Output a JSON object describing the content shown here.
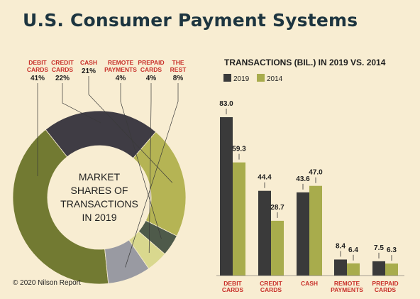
{
  "header": {
    "title": "U.S. Consumer Payment Systems"
  },
  "footer": {
    "copyright": "© 2020 Nilson Report"
  },
  "chart_data": [
    {
      "type": "pie",
      "title": "MARKET SHARES OF TRANSACTIONS IN 2019",
      "center_lines": [
        "MARKET",
        "SHARES OF",
        "TRANSACTIONS",
        "IN 2019"
      ],
      "slices": [
        {
          "label": [
            "DEBIT",
            "CARDS"
          ],
          "pct_label": "41%",
          "value": 41,
          "color": "#727a32"
        },
        {
          "label": [
            "CREDIT",
            "CARDS"
          ],
          "pct_label": "22%",
          "value": 22,
          "color": "#3f3c44"
        },
        {
          "label": [
            "CASH"
          ],
          "pct_label": "21%",
          "value": 21,
          "color": "#b5b454"
        },
        {
          "label": [
            "REMOTE",
            "PAYMENTS"
          ],
          "pct_label": "4%",
          "value": 4,
          "color": "#4e5a4a"
        },
        {
          "label": [
            "PREPAID",
            "CARDS"
          ],
          "pct_label": "4%",
          "value": 4,
          "color": "#d9d88e"
        },
        {
          "label": [
            "THE",
            "REST"
          ],
          "pct_label": "8%",
          "value": 8,
          "color": "#999aa2"
        }
      ]
    },
    {
      "type": "bar",
      "title": "TRANSACTIONS (BIL.) IN 2019 VS. 2014",
      "categories": [
        [
          "DEBIT",
          "CARDS"
        ],
        [
          "CREDIT",
          "CARDS"
        ],
        [
          "CASH"
        ],
        [
          "REMOTE",
          "PAYMENTS"
        ],
        [
          "PREPAID",
          "CARDS"
        ]
      ],
      "series": [
        {
          "name": "2019",
          "values": [
            83.0,
            44.4,
            43.6,
            8.4,
            7.5
          ],
          "labels": [
            "83.0",
            "44.4",
            "43.6",
            "8.4",
            "7.5"
          ],
          "color": "#3a3a3a"
        },
        {
          "name": "2014",
          "values": [
            59.3,
            28.7,
            47.0,
            6.4,
            6.3
          ],
          "labels": [
            "59.3",
            "28.7",
            "47.0",
            "6.4",
            "6.3"
          ],
          "color": "#a8ac4c"
        }
      ],
      "ylim": [
        0,
        83
      ],
      "grid": false,
      "legend": "top-left"
    }
  ]
}
